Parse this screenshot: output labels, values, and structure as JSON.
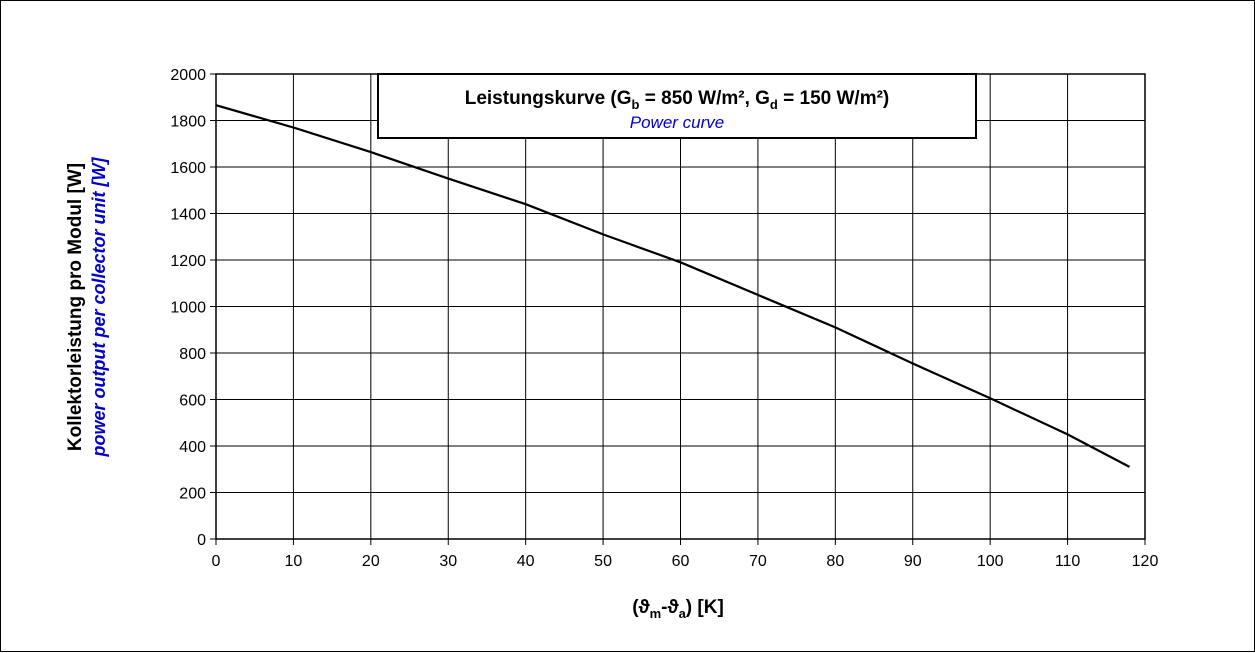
{
  "chart_data": {
    "type": "line",
    "title": {
      "prefix": "Leistungskurve (G",
      "sub1": "b",
      "mid": " = 850 W/m², G",
      "sub2": "d",
      "suffix": " = 150 W/m²)",
      "subtitle": "Power curve"
    },
    "xlabel": {
      "open": "(",
      "sym1": "ϑ",
      "sub1": "m",
      "dash": "-",
      "sym2": "ϑ",
      "sub2": "a",
      "close": ") [K]"
    },
    "ylabel": "Kollektorleistung pro Modul  [W]",
    "ylabel_en": "power output per collector unit [W]",
    "xlim": [
      0,
      120
    ],
    "ylim": [
      0,
      2000
    ],
    "xticks": [
      "0",
      "10",
      "20",
      "30",
      "40",
      "50",
      "60",
      "70",
      "80",
      "90",
      "100",
      "110",
      "120"
    ],
    "yticks": [
      "0",
      "200",
      "400",
      "600",
      "800",
      "1000",
      "1200",
      "1400",
      "1600",
      "1800",
      "2000"
    ],
    "grid": true,
    "series": [
      {
        "x": [
          0,
          10,
          20,
          30,
          40,
          50,
          60,
          70,
          80,
          90,
          100,
          110,
          118
        ],
        "values": [
          1866,
          1770,
          1664,
          1550,
          1440,
          1310,
          1190,
          1050,
          910,
          755,
          605,
          450,
          310
        ]
      }
    ]
  }
}
